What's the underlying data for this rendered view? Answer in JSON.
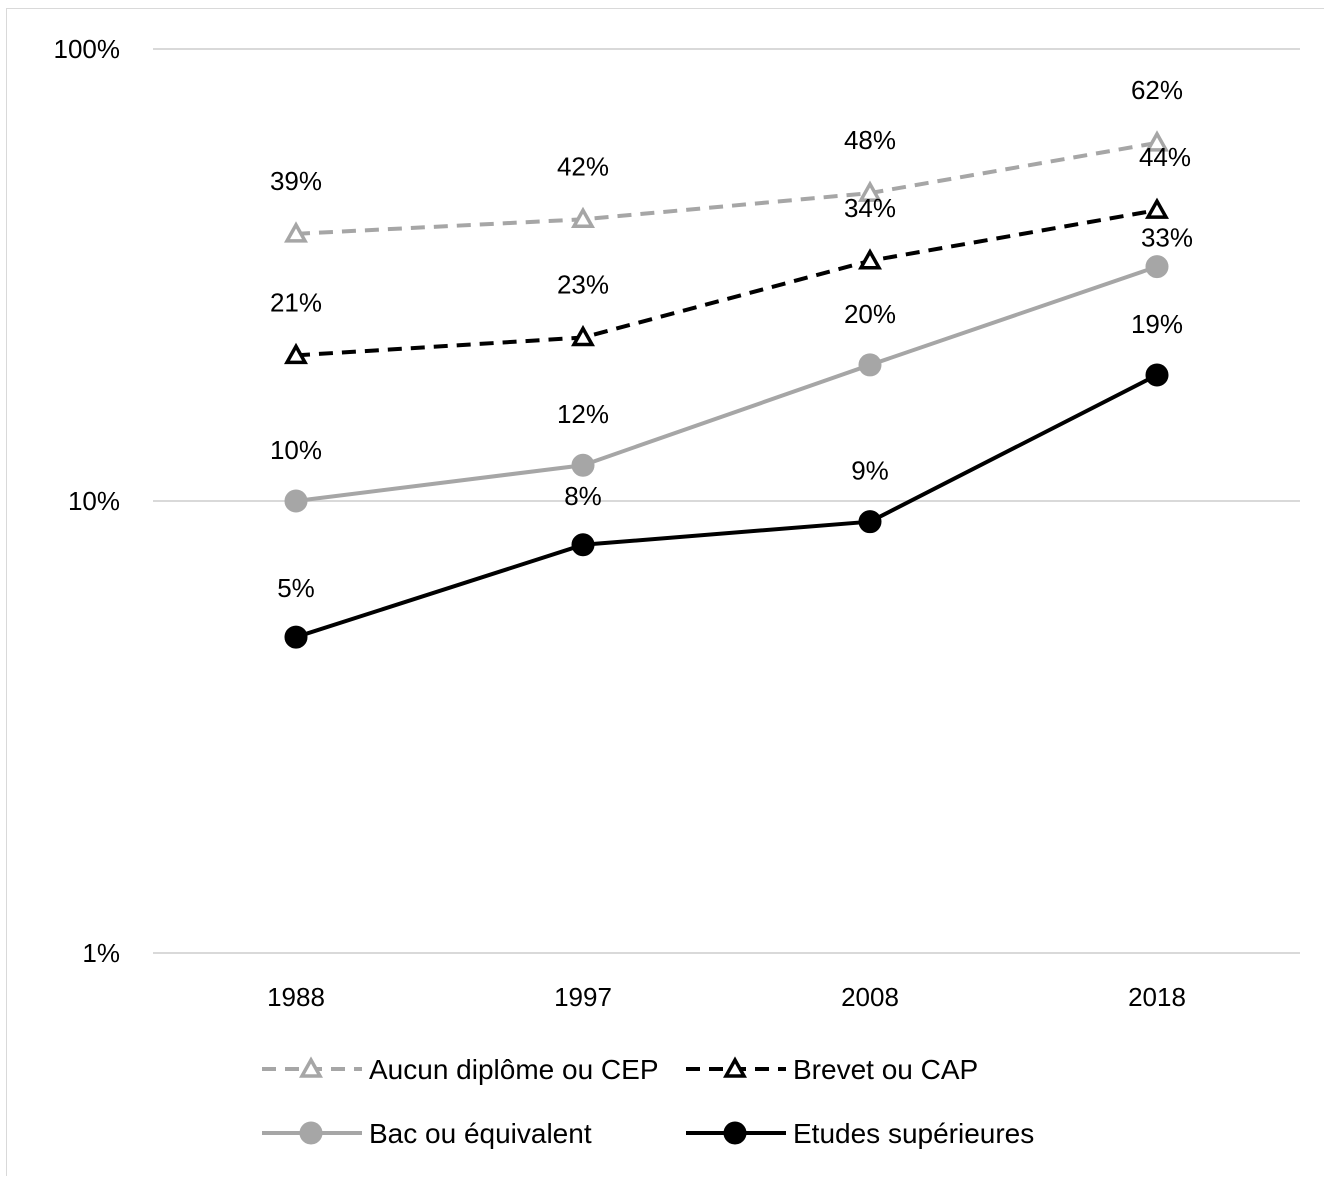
{
  "chart_data": {
    "type": "line",
    "y_scale": "log",
    "ylim": [
      0.01,
      1
    ],
    "grid": "horizontal",
    "legend_position": "bottom",
    "categories": [
      "1988",
      "1997",
      "2008",
      "2018"
    ],
    "y_ticks": [
      {
        "value": 1,
        "label": "100%"
      },
      {
        "value": 0.1,
        "label": "10%"
      },
      {
        "value": 0.01,
        "label": "1%"
      }
    ],
    "series": [
      {
        "name": "Aucun diplôme ou CEP",
        "values": [
          0.39,
          0.42,
          0.48,
          0.62
        ],
        "labels": [
          "39%",
          "42%",
          "48%",
          "62%"
        ],
        "color": "#a6a6a6",
        "dash": "dashed",
        "marker": "triangle-open"
      },
      {
        "name": "Brevet ou CAP",
        "values": [
          0.21,
          0.23,
          0.34,
          0.44
        ],
        "labels": [
          "21%",
          "23%",
          "34%",
          "44%"
        ],
        "color": "#000000",
        "dash": "dashed",
        "marker": "triangle-open"
      },
      {
        "name": "Bac ou équivalent",
        "values": [
          0.1,
          0.12,
          0.2,
          0.33
        ],
        "labels": [
          "10%",
          "12%",
          "20%",
          "33%"
        ],
        "color": "#a6a6a6",
        "dash": "solid",
        "marker": "circle"
      },
      {
        "name": "Etudes supérieures",
        "values": [
          0.05,
          0.08,
          0.09,
          0.19
        ],
        "labels": [
          "5%",
          "8%",
          "9%",
          "19%"
        ],
        "color": "#000000",
        "dash": "solid",
        "marker": "circle"
      }
    ]
  }
}
